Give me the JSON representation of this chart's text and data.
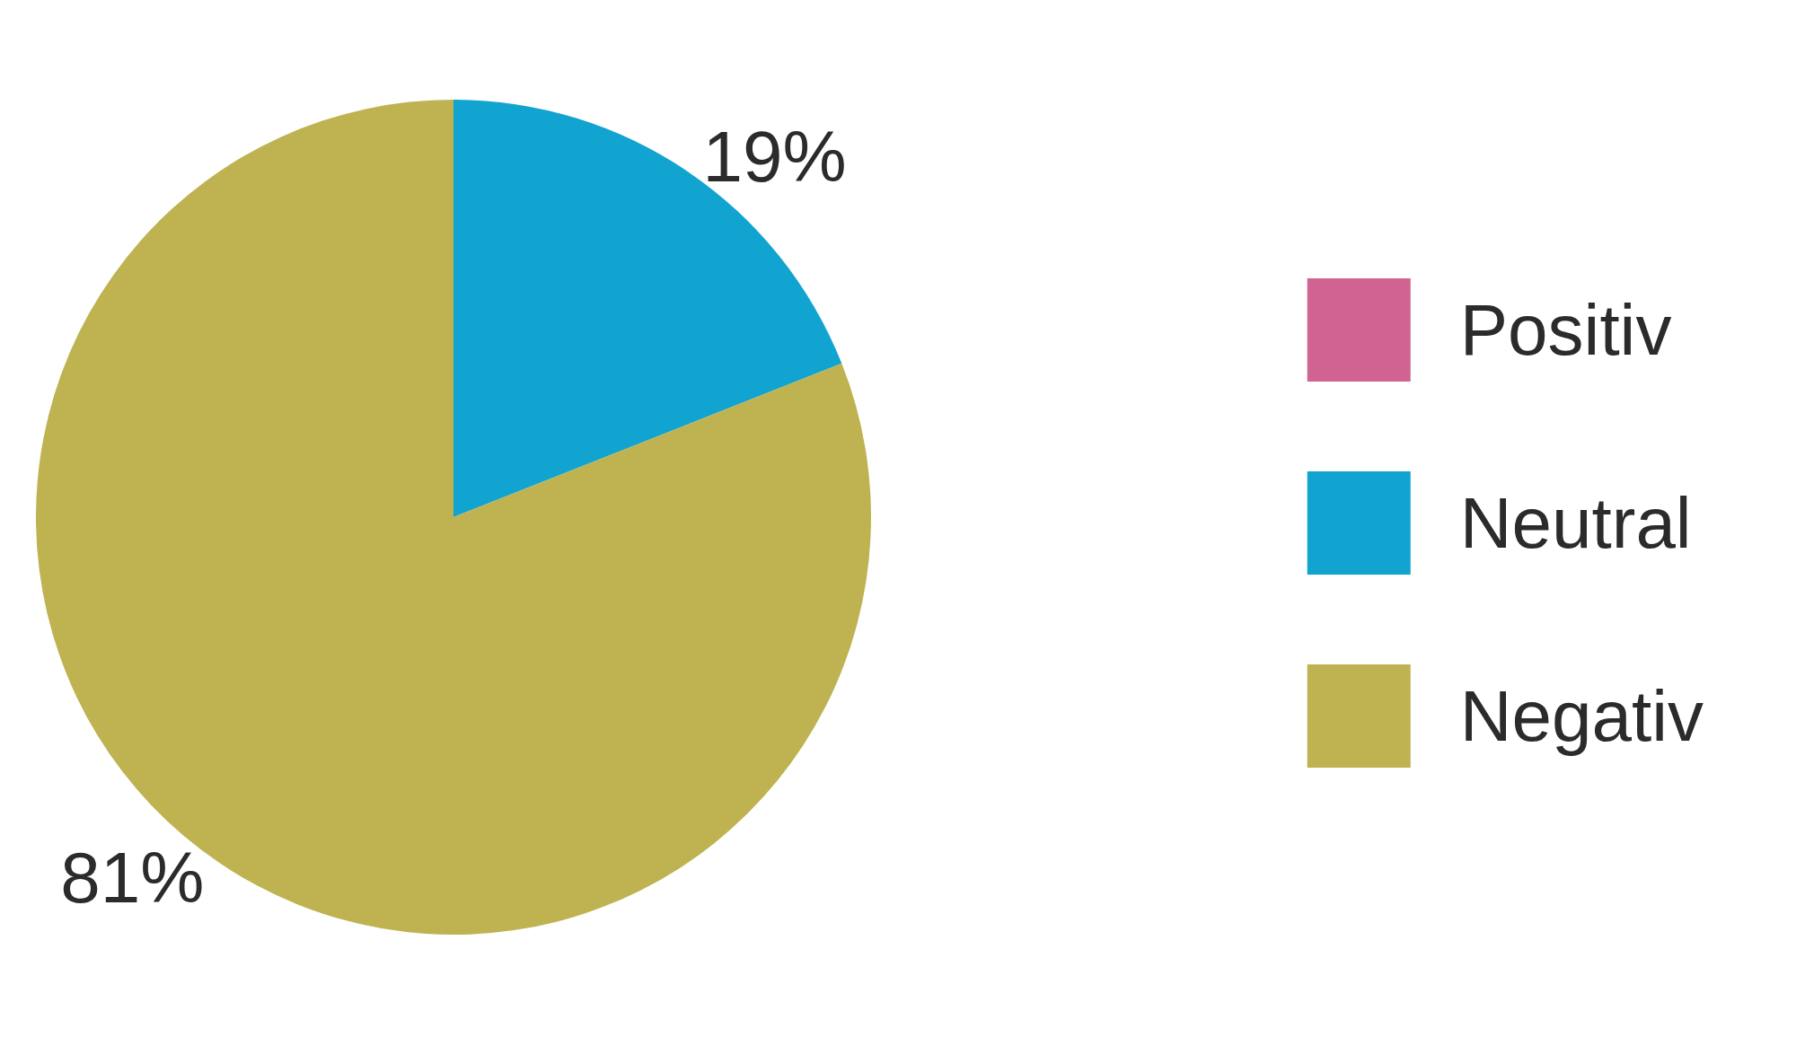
{
  "chart_data": {
    "type": "pie",
    "categories": [
      "Positiv",
      "Neutral",
      "Negativ"
    ],
    "values": [
      0,
      19,
      81
    ],
    "colors": [
      "#d06391",
      "#12a4d0",
      "#bfb250"
    ],
    "value_labels": [
      null,
      "19%",
      "81%"
    ],
    "legend": "right"
  }
}
